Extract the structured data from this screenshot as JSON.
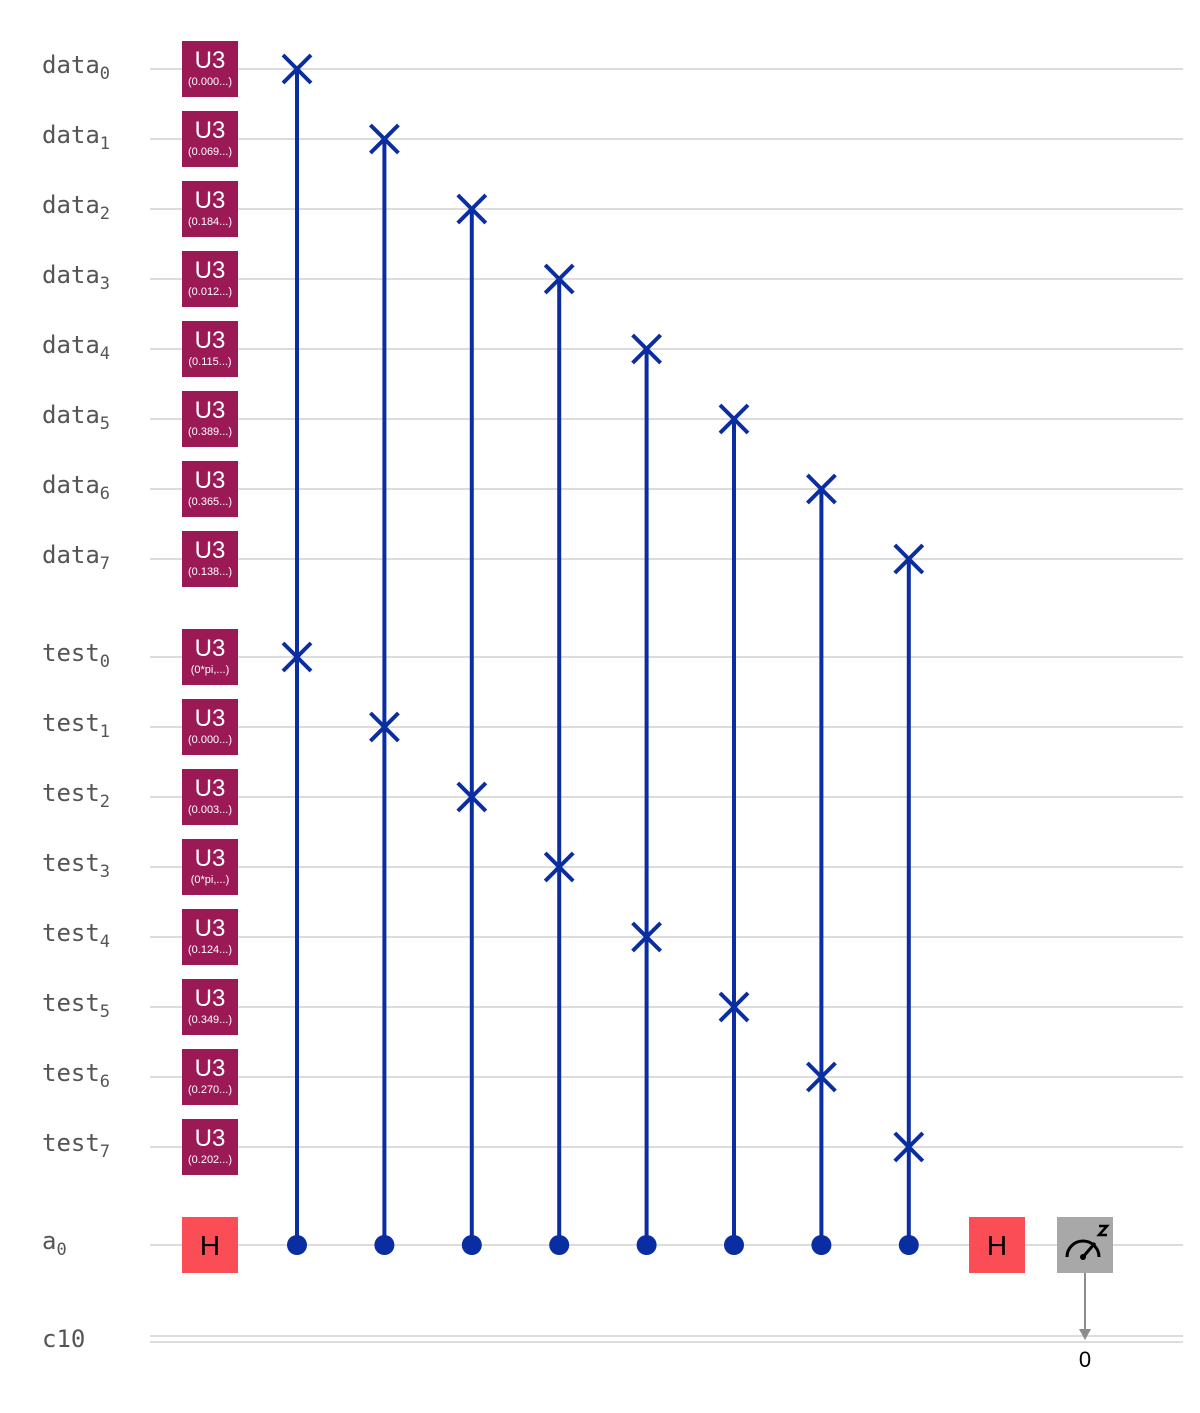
{
  "colors": {
    "wire": "#c8c8c8",
    "label": "#555555",
    "u3_fill": "#9b1a55",
    "h_fill": "#fa4d56",
    "swap": "#0a2ea2",
    "measure_fill": "#a8a8a8",
    "measure_arrow": "#8c8c8c"
  },
  "qubits": [
    {
      "base": "data",
      "sub": "0",
      "u3_param": "(0.000...)"
    },
    {
      "base": "data",
      "sub": "1",
      "u3_param": "(0.069...)"
    },
    {
      "base": "data",
      "sub": "2",
      "u3_param": "(0.184...)"
    },
    {
      "base": "data",
      "sub": "3",
      "u3_param": "(0.012...)"
    },
    {
      "base": "data",
      "sub": "4",
      "u3_param": "(0.115...)"
    },
    {
      "base": "data",
      "sub": "5",
      "u3_param": "(0.389...)"
    },
    {
      "base": "data",
      "sub": "6",
      "u3_param": "(0.365...)"
    },
    {
      "base": "data",
      "sub": "7",
      "u3_param": "(0.138...)"
    },
    {
      "base": "test",
      "sub": "0",
      "u3_param": "(0*pi,...)"
    },
    {
      "base": "test",
      "sub": "1",
      "u3_param": "(0.000...)"
    },
    {
      "base": "test",
      "sub": "2",
      "u3_param": "(0.003...)"
    },
    {
      "base": "test",
      "sub": "3",
      "u3_param": "(0*pi,...)"
    },
    {
      "base": "test",
      "sub": "4",
      "u3_param": "(0.124...)"
    },
    {
      "base": "test",
      "sub": "5",
      "u3_param": "(0.349...)"
    },
    {
      "base": "test",
      "sub": "6",
      "u3_param": "(0.270...)"
    },
    {
      "base": "test",
      "sub": "7",
      "u3_param": "(0.202...)"
    }
  ],
  "ancilla": {
    "base": "a",
    "sub": "0"
  },
  "classical": {
    "label": "c10",
    "bit": "0"
  },
  "gates": {
    "u3": "U3",
    "h": "H"
  },
  "icons": {
    "measure": "measure-z-icon",
    "swap": "swap-x-icon",
    "control": "control-dot-icon"
  },
  "cswaps": [
    {
      "control": "a0",
      "targets": [
        "data0",
        "test0"
      ]
    },
    {
      "control": "a0",
      "targets": [
        "data1",
        "test1"
      ]
    },
    {
      "control": "a0",
      "targets": [
        "data2",
        "test2"
      ]
    },
    {
      "control": "a0",
      "targets": [
        "data3",
        "test3"
      ]
    },
    {
      "control": "a0",
      "targets": [
        "data4",
        "test4"
      ]
    },
    {
      "control": "a0",
      "targets": [
        "data5",
        "test5"
      ]
    },
    {
      "control": "a0",
      "targets": [
        "data6",
        "test6"
      ]
    },
    {
      "control": "a0",
      "targets": [
        "data7",
        "test7"
      ]
    }
  ]
}
